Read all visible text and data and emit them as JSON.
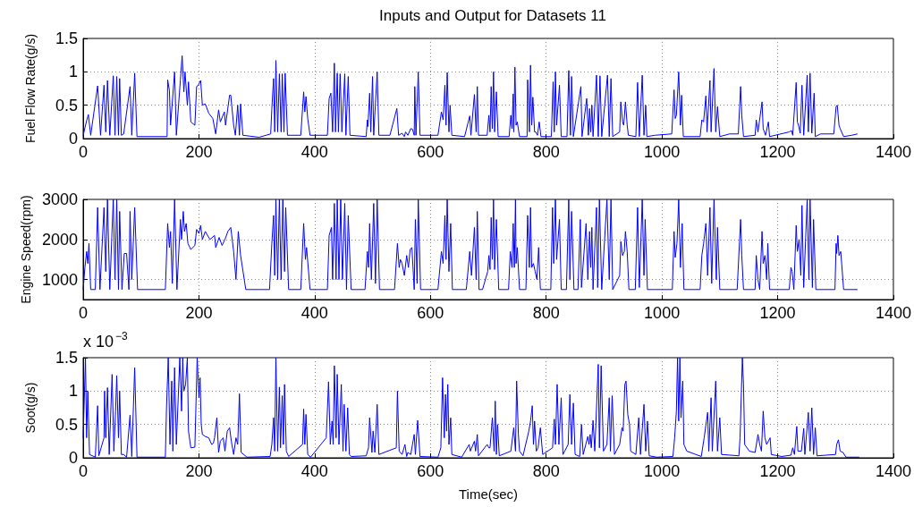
{
  "chart_data": [
    {
      "type": "line",
      "title": "Inputs and Output for Datasets 11",
      "ylabel": "Fuel Flow Rate(g/s)",
      "xlim": [
        0,
        1400
      ],
      "xticks": [
        0,
        200,
        400,
        600,
        800,
        1000,
        1200,
        1400
      ],
      "ylim": [
        0,
        1.5
      ],
      "yticks": [
        0,
        0.5,
        1,
        1.5
      ],
      "grid": true,
      "x": [
        0,
        6,
        9,
        13,
        25,
        30,
        36,
        39,
        42,
        46,
        52,
        55,
        58,
        61,
        63,
        66,
        70,
        81,
        84,
        89,
        93,
        145,
        146,
        149,
        151,
        158,
        161,
        168,
        171,
        174,
        176,
        180,
        182,
        186,
        193,
        196,
        199,
        203,
        206,
        211,
        217,
        224,
        229,
        234,
        237,
        244,
        246,
        253,
        255,
        260,
        263,
        267,
        270,
        272,
        276,
        304,
        324,
        326,
        329,
        331,
        333,
        336,
        339,
        342,
        344,
        347,
        349,
        353,
        376,
        381,
        383,
        385,
        388,
        392,
        422,
        425,
        428,
        431,
        434,
        436,
        439,
        441,
        444,
        447,
        452,
        454,
        458,
        461,
        489,
        491,
        492,
        495,
        497,
        500,
        502,
        508,
        511,
        530,
        542,
        545,
        551,
        555,
        557,
        561,
        566,
        569,
        572,
        573,
        575,
        579,
        582,
        613,
        619,
        622,
        625,
        627,
        629,
        632,
        634,
        637,
        659,
        668,
        670,
        676,
        679,
        681,
        683,
        698,
        701,
        703,
        705,
        707,
        709,
        711,
        714,
        717,
        736,
        739,
        741,
        743,
        744,
        746,
        748,
        750,
        754,
        767,
        768,
        771,
        773,
        775,
        777,
        780,
        782,
        785,
        788,
        791,
        809,
        812,
        814,
        816,
        818,
        823,
        826,
        836,
        839,
        842,
        844,
        847,
        860,
        862,
        870,
        873,
        875,
        877,
        879,
        881,
        887,
        890,
        893,
        896,
        906,
        909,
        912,
        915,
        927,
        929,
        932,
        934,
        937,
        940,
        942,
        955,
        958,
        961,
        966,
        969,
        972,
        974,
        988,
        1017,
        1021,
        1023,
        1025,
        1029,
        1032,
        1034,
        1037,
        1066,
        1069,
        1072,
        1076,
        1078,
        1083,
        1085,
        1090,
        1093,
        1096,
        1100,
        1117,
        1132,
        1136,
        1138,
        1141,
        1161,
        1163,
        1166,
        1173,
        1175,
        1179,
        1184,
        1186,
        1220,
        1224,
        1226,
        1232,
        1234,
        1236,
        1239,
        1242,
        1245,
        1251,
        1253,
        1256,
        1259,
        1263,
        1265,
        1274,
        1297,
        1301,
        1303,
        1306,
        1308,
        1314,
        1328,
        1338
      ],
      "series": [
        {
          "color": "#0000ff",
          "values": [
            0.05,
            0.27,
            0.36,
            0.05,
            0.79,
            0.05,
            0.8,
            0.1,
            0.87,
            0.05,
            0.94,
            0.05,
            0.93,
            0.05,
            0.9,
            0.05,
            0.07,
            0.78,
            0.05,
            0.98,
            0.03,
            0.03,
            0.88,
            0.72,
            0.2,
            1.0,
            0.05,
            0.88,
            1.24,
            0.7,
            1.0,
            0.5,
            0.85,
            0.25,
            0.2,
            0.78,
            0.8,
            0.87,
            0.5,
            0.52,
            0.38,
            0.3,
            0.07,
            0.43,
            0.25,
            0.4,
            0.2,
            0.65,
            0.65,
            0.2,
            0.05,
            0.5,
            0.05,
            0.52,
            0.05,
            0.02,
            0.07,
            0.45,
            0.9,
            0.1,
            1.17,
            0.1,
            0.97,
            0.1,
            0.97,
            0.1,
            0.98,
            0.05,
            0.05,
            0.7,
            0.4,
            0.63,
            0.3,
            0.05,
            0.05,
            0.6,
            0.68,
            0.1,
            1.13,
            0.1,
            0.98,
            0.1,
            0.97,
            0.1,
            0.97,
            0.05,
            0.93,
            0.05,
            0.03,
            0.28,
            0.18,
            0.68,
            0.1,
            0.93,
            0.05,
            1.0,
            0.05,
            0.05,
            0.45,
            0.05,
            0.08,
            0.03,
            0.1,
            0.05,
            0.15,
            0.14,
            0.05,
            0.78,
            0.05,
            1.0,
            0.05,
            0.05,
            0.4,
            0.28,
            0.8,
            0.2,
            0.99,
            0.1,
            0.5,
            0.05,
            0.03,
            0.34,
            0.05,
            0.66,
            0.1,
            0.78,
            0.05,
            0.05,
            0.35,
            0.1,
            0.78,
            0.15,
            1.0,
            0.1,
            0.7,
            0.03,
            0.03,
            0.35,
            0.15,
            0.67,
            0.1,
            1.07,
            0.2,
            0.25,
            0.03,
            0.03,
            0.88,
            0.1,
            1.1,
            0.2,
            0.62,
            0.1,
            0.1,
            0.05,
            0.25,
            0.03,
            0.03,
            0.85,
            0.1,
            1.0,
            0.2,
            0.8,
            0.03,
            0.03,
            1.02,
            0.05,
            0.93,
            0.03,
            0.78,
            0.03,
            0.6,
            0.05,
            0.45,
            0.1,
            0.5,
            0.03,
            0.95,
            0.03,
            0.94,
            0.03,
            0.95,
            0.03,
            0.9,
            0.03,
            0.1,
            0.55,
            0.25,
            0.2,
            0.55,
            0.2,
            0.05,
            0.03,
            0.84,
            0.03,
            0.95,
            0.05,
            0.5,
            0.03,
            0.05,
            0.07,
            0.73,
            0.3,
            0.35,
            1.0,
            0.2,
            0.65,
            0.03,
            0.03,
            0.28,
            0.25,
            0.64,
            0.1,
            0.87,
            0.1,
            1.05,
            0.1,
            0.48,
            0.03,
            0.07,
            0.07,
            0.78,
            0.35,
            0.03,
            0.05,
            0.28,
            0.1,
            0.55,
            0.15,
            0.05,
            0.25,
            0.03,
            0.1,
            0.12,
            0.05,
            0.84,
            0.25,
            0.2,
            0.08,
            0.8,
            0.05,
            0.95,
            0.1,
            0.98,
            0.08,
            0.68,
            0.03,
            0.07,
            0.07,
            0.48,
            0.5,
            0.2,
            0.15,
            0.03,
            0.05,
            0.07
          ]
        }
      ]
    },
    {
      "type": "line",
      "ylabel": "Engine Speed(rpm)",
      "xlim": [
        0,
        1400
      ],
      "xticks": [
        0,
        200,
        400,
        600,
        800,
        1000,
        1200,
        1400
      ],
      "ylim": [
        500,
        3000
      ],
      "yticks": [
        1000,
        2000,
        3000
      ],
      "grid": true,
      "x": [
        0,
        3,
        6,
        8,
        10,
        13,
        21,
        25,
        29,
        36,
        39,
        42,
        46,
        52,
        55,
        58,
        61,
        63,
        67,
        71,
        75,
        79,
        81,
        84,
        89,
        94,
        142,
        146,
        149,
        151,
        154,
        158,
        162,
        168,
        170,
        173,
        175,
        178,
        181,
        186,
        193,
        196,
        200,
        203,
        206,
        211,
        219,
        227,
        229,
        235,
        240,
        245,
        250,
        255,
        260,
        264,
        268,
        272,
        281,
        322,
        326,
        329,
        331,
        333,
        336,
        339,
        342,
        345,
        348,
        350,
        355,
        376,
        381,
        384,
        386,
        392,
        422,
        425,
        429,
        431,
        434,
        437,
        439,
        442,
        445,
        448,
        452,
        455,
        458,
        463,
        487,
        491,
        493,
        495,
        498,
        502,
        505,
        508,
        512,
        538,
        543,
        546,
        548,
        551,
        555,
        559,
        562,
        565,
        568,
        572,
        574,
        577,
        579,
        583,
        613,
        619,
        622,
        625,
        627,
        629,
        632,
        635,
        638,
        662,
        668,
        671,
        676,
        679,
        681,
        684,
        690,
        699,
        701,
        703,
        705,
        707,
        709,
        711,
        714,
        718,
        735,
        738,
        741,
        743,
        745,
        747,
        748,
        750,
        754,
        765,
        768,
        771,
        773,
        775,
        778,
        781,
        784,
        787,
        790,
        808,
        811,
        813,
        816,
        818,
        823,
        826,
        835,
        839,
        841,
        844,
        848,
        855,
        859,
        861,
        869,
        872,
        875,
        877,
        879,
        881,
        887,
        889,
        892,
        896,
        905,
        909,
        912,
        915,
        927,
        929,
        932,
        935,
        937,
        940,
        943,
        954,
        958,
        961,
        966,
        969,
        971,
        975,
        988,
        1018,
        1021,
        1023,
        1026,
        1029,
        1032,
        1035,
        1038,
        1066,
        1069,
        1072,
        1076,
        1079,
        1083,
        1086,
        1090,
        1094,
        1096,
        1100,
        1130,
        1136,
        1138,
        1141,
        1161,
        1163,
        1166,
        1169,
        1173,
        1175,
        1178,
        1181,
        1183,
        1186,
        1220,
        1223,
        1225,
        1228,
        1232,
        1234,
        1237,
        1240,
        1242,
        1245,
        1251,
        1254,
        1256,
        1260,
        1262,
        1266,
        1299,
        1301,
        1302,
        1304,
        1306,
        1309,
        1314,
        1338
      ],
      "series": [
        {
          "color": "#0000ff",
          "values": [
            750,
            1300,
            1700,
            1400,
            1900,
            750,
            750,
            2800,
            750,
            2800,
            1200,
            3000,
            750,
            3000,
            1000,
            3000,
            750,
            2700,
            750,
            1650,
            1650,
            750,
            2700,
            1000,
            2800,
            750,
            750,
            2400,
            1800,
            2200,
            900,
            3000,
            750,
            2500,
            2000,
            2700,
            2200,
            2400,
            1900,
            1750,
            1850,
            2250,
            2150,
            2350,
            2000,
            2200,
            2000,
            2100,
            1800,
            2050,
            1850,
            2000,
            2200,
            2300,
            1700,
            1000,
            2200,
            1600,
            750,
            750,
            1900,
            2600,
            1100,
            3000,
            1000,
            3000,
            1000,
            3000,
            1200,
            2800,
            750,
            750,
            2400,
            1500,
            1800,
            750,
            750,
            2100,
            2300,
            1000,
            2900,
            1000,
            3000,
            1000,
            3000,
            1000,
            2900,
            750,
            2600,
            750,
            750,
            1700,
            1300,
            2400,
            1000,
            2900,
            900,
            3000,
            750,
            750,
            1900,
            1300,
            1500,
            1400,
            1100,
            1600,
            1300,
            1750,
            1800,
            750,
            2500,
            900,
            3000,
            750,
            750,
            1700,
            1400,
            2600,
            1500,
            3000,
            1200,
            2400,
            750,
            750,
            1700,
            1100,
            2300,
            1000,
            2700,
            750,
            750,
            1200,
            1600,
            1250,
            2550,
            1500,
            3000,
            1250,
            2500,
            750,
            750,
            1700,
            1300,
            2400,
            1300,
            3000,
            1400,
            1800,
            750,
            750,
            2600,
            1300,
            2800,
            1300,
            1400,
            1200,
            1000,
            1800,
            750,
            750,
            2800,
            1400,
            3000,
            1500,
            2500,
            750,
            750,
            3000,
            1000,
            2700,
            750,
            750,
            2500,
            800,
            2400,
            1000,
            2200,
            1300,
            2300,
            750,
            2800,
            800,
            3000,
            750,
            3000,
            1000,
            3000,
            750,
            1100,
            1950,
            1600,
            1700,
            2200,
            1700,
            750,
            750,
            2800,
            800,
            3000,
            1100,
            2500,
            750,
            750,
            750,
            2200,
            1550,
            1900,
            3000,
            1300,
            2400,
            750,
            750,
            1600,
            1900,
            2400,
            1100,
            2800,
            900,
            3000,
            1000,
            2300,
            750,
            750,
            2500,
            1600,
            750,
            750,
            1600,
            1000,
            750,
            2200,
            1400,
            1600,
            1000,
            1900,
            750,
            750,
            1300,
            1200,
            750,
            2350,
            1700,
            2000,
            1100,
            2850,
            800,
            3000,
            1000,
            3000,
            800,
            2500,
            750,
            750,
            1900,
            1650,
            2100,
            1600,
            1700,
            750,
            750
          ]
        }
      ]
    },
    {
      "type": "line",
      "xlabel": "Time(sec)",
      "ylabel": "Soot(g/s)",
      "annotations": [
        "x 10$^{−3}$"
      ],
      "xlim": [
        0,
        1400
      ],
      "xticks": [
        0,
        200,
        400,
        600,
        800,
        1000,
        1200,
        1400
      ],
      "ylim": [
        0,
        1.5
      ],
      "yticks": [
        0,
        0.5,
        1,
        1.5
      ],
      "grid": true,
      "x": [
        0,
        4,
        6,
        8,
        11,
        21,
        25,
        27,
        36,
        37,
        39,
        42,
        45,
        50,
        53,
        56,
        58,
        61,
        63,
        66,
        70,
        75,
        81,
        84,
        89,
        93,
        142,
        144,
        147,
        150,
        153,
        155,
        158,
        161,
        167,
        170,
        172,
        174,
        177,
        180,
        182,
        186,
        193,
        197,
        200,
        202,
        204,
        206,
        211,
        217,
        222,
        225,
        227,
        231,
        234,
        237,
        242,
        245,
        249,
        253,
        256,
        260,
        264,
        267,
        270,
        273,
        283,
        323,
        326,
        329,
        331,
        333,
        336,
        339,
        341,
        344,
        346,
        348,
        351,
        355,
        379,
        381,
        383,
        385,
        388,
        393,
        420,
        424,
        427,
        430,
        432,
        434,
        437,
        439,
        442,
        446,
        449,
        451,
        454,
        457,
        460,
        463,
        489,
        493,
        495,
        499,
        501,
        504,
        508,
        511,
        541,
        543,
        546,
        551,
        556,
        559,
        561,
        566,
        572,
        574,
        578,
        582,
        613,
        618,
        621,
        624,
        626,
        628,
        630,
        632,
        635,
        637,
        654,
        667,
        669,
        676,
        678,
        681,
        683,
        698,
        701,
        703,
        707,
        710,
        712,
        714,
        716,
        719,
        739,
        744,
        747,
        749,
        752,
        754,
        760,
        770,
        773,
        776,
        778,
        780,
        783,
        786,
        790,
        794,
        811,
        814,
        816,
        819,
        822,
        826,
        829,
        838,
        841,
        844,
        847,
        850,
        858,
        861,
        864,
        872,
        874,
        876,
        878,
        881,
        884,
        890,
        892,
        895,
        899,
        905,
        909,
        911,
        914,
        918,
        927,
        931,
        933,
        936,
        938,
        941,
        944,
        946,
        955,
        960,
        963,
        969,
        972,
        975,
        978,
        991,
        1019,
        1022,
        1025,
        1027,
        1029,
        1031,
        1033,
        1036,
        1038,
        1043,
        1068,
        1073,
        1079,
        1081,
        1085,
        1087,
        1093,
        1096,
        1100,
        1103,
        1133,
        1135,
        1139,
        1141,
        1143,
        1151,
        1161,
        1166,
        1169,
        1172,
        1175,
        1178,
        1181,
        1187,
        1189,
        1207,
        1223,
        1226,
        1229,
        1233,
        1235,
        1241,
        1245,
        1247,
        1253,
        1256,
        1259,
        1262,
        1265,
        1268,
        1300,
        1302,
        1305,
        1308,
        1313,
        1318,
        1341
      ],
      "series": [
        {
          "color": "#0000ff",
          "values": [
            0.3,
            1.5,
            0.3,
            1.0,
            0.05,
            0.01,
            0.78,
            0.03,
            0.3,
            1.0,
            0.3,
            1.05,
            0.05,
            1.25,
            0.1,
            0.7,
            1.23,
            0.3,
            1.0,
            0.05,
            0.05,
            0.01,
            0.64,
            0.02,
            1.35,
            0.01,
            0.01,
            0.75,
            1.5,
            0.2,
            1.15,
            0.1,
            1.35,
            0.2,
            1.5,
            0.7,
            1.5,
            1.0,
            1.1,
            1.5,
            0.4,
            0.15,
            0.16,
            1.5,
            0.9,
            1.2,
            0.5,
            0.35,
            0.32,
            0.3,
            0.2,
            0.22,
            0.3,
            0.6,
            0.08,
            0.25,
            0.3,
            0.1,
            0.4,
            0.45,
            0.25,
            0.05,
            0.3,
            0.2,
            0.96,
            0.08,
            0.01,
            0.02,
            0.2,
            0.6,
            0.1,
            1.5,
            0.1,
            1.06,
            0.15,
            0.93,
            0.2,
            1.1,
            0.1,
            0.02,
            0.2,
            0.73,
            0.2,
            0.65,
            0.05,
            0.01,
            0.3,
            1.14,
            0.2,
            0.55,
            0.2,
            1.38,
            0.3,
            1.25,
            0.2,
            1.1,
            0.1,
            0.8,
            0.1,
            0.75,
            0.05,
            0.02,
            0.03,
            0.15,
            0.6,
            0.08,
            0.4,
            0.08,
            0.8,
            0.05,
            0.15,
            1.0,
            0.1,
            0.05,
            0.2,
            0.02,
            0.08,
            0.05,
            0.35,
            0.05,
            0.56,
            0.02,
            0.01,
            0.15,
            1.2,
            0.3,
            0.95,
            0.4,
            1.1,
            0.2,
            0.6,
            0.05,
            0.01,
            0.2,
            0.1,
            0.25,
            0.1,
            0.35,
            0.03,
            0.2,
            0.15,
            0.15,
            0.6,
            0.1,
            0.85,
            0.05,
            0.5,
            0.03,
            0.1,
            0.45,
            0.1,
            1.15,
            0.35,
            0.1,
            0.03,
            0.4,
            0.55,
            0.78,
            0.2,
            0.55,
            0.1,
            0.15,
            0.45,
            0.05,
            0.15,
            0.58,
            0.2,
            1.1,
            0.2,
            0.9,
            0.05,
            0.2,
            0.95,
            0.2,
            0.82,
            0.05,
            0.02,
            0.5,
            0.05,
            0.32,
            0.2,
            0.35,
            0.15,
            0.56,
            0.1,
            1.4,
            0.15,
            1.38,
            0.1,
            0.2,
            0.9,
            0.1,
            0.93,
            0.05,
            0.2,
            0.45,
            0.4,
            1.1,
            1.15,
            0.65,
            0.5,
            0.1,
            0.05,
            0.6,
            0.05,
            0.8,
            0.1,
            0.55,
            0.03,
            0.01,
            0.02,
            0.3,
            0.7,
            1.5,
            0.55,
            1.5,
            0.6,
            1.15,
            0.2,
            0.1,
            0.02,
            0.3,
            0.68,
            0.1,
            0.9,
            0.1,
            1.15,
            0.1,
            0.6,
            0.05,
            0.03,
            0.3,
            1.5,
            1.1,
            0.2,
            0.1,
            0.08,
            0.35,
            0.2,
            0.1,
            0.7,
            0.3,
            0.2,
            0.3,
            0.05,
            0.02,
            0.04,
            0.15,
            0.05,
            0.47,
            0.1,
            0.1,
            0.44,
            0.05,
            0.68,
            0.1,
            0.75,
            0.05,
            0.45,
            0.03,
            0.05,
            0.2,
            0.27,
            0.1,
            0.08,
            0.01,
            0.01
          ]
        }
      ]
    }
  ]
}
